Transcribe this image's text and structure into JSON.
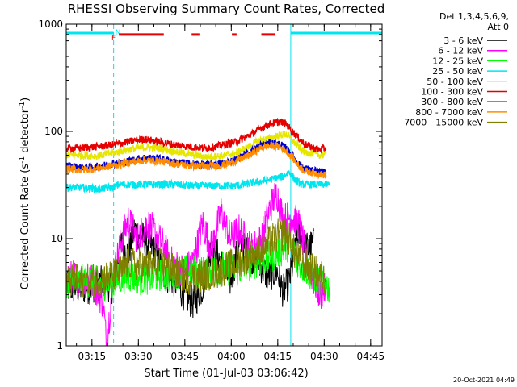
{
  "chart_data": {
    "type": "line",
    "title": "RHESSI Observing Summary Count Rates, Corrected",
    "xlabel": "Start Time (01-Jul-03 03:06:42)",
    "ylabel_prefix": "Corrected Count Rate (s",
    "ylabel_sup1": "-1",
    "ylabel_mid": " detector",
    "ylabel_sup2": "-1",
    "ylabel_suffix": ")",
    "yscale": "log",
    "ylim": [
      1,
      1000
    ],
    "x_unit": "minutes after 03:06:42",
    "xlim": [
      0,
      102
    ],
    "x_ticks": [
      {
        "label": "03:15",
        "x": 8.3
      },
      {
        "label": "03:30",
        "x": 23.3
      },
      {
        "label": "03:45",
        "x": 38.3
      },
      {
        "label": "04:00",
        "x": 53.3
      },
      {
        "label": "04:15",
        "x": 68.3
      },
      {
        "label": "04:30",
        "x": 83.3
      },
      {
        "label": "04:45",
        "x": 98.3
      }
    ],
    "y_ticks": [
      {
        "label": "1",
        "v": 1
      },
      {
        "label": "10",
        "v": 10
      },
      {
        "label": "100",
        "v": 100
      },
      {
        "label": "1000",
        "v": 1000
      }
    ],
    "legend_header": [
      "Det 1,3,4,5,6,9,",
      "Att 0"
    ],
    "legend_position": "top-right outside",
    "night_intervals": [
      [
        0,
        15.3
      ],
      [
        72.5,
        102
      ]
    ],
    "boundary_color": "#00e5ee",
    "saa_marks": [
      {
        "label": "F",
        "x": 15.3
      },
      {
        "label": "N",
        "x": 16.7
      }
    ],
    "flag_segments": [
      [
        17,
        31.5
      ],
      [
        40.5,
        43
      ],
      [
        53.5,
        55
      ],
      [
        63,
        67.5
      ]
    ],
    "flag_level": 800,
    "series": [
      {
        "name": "3 - 6 keV",
        "color": "#000000",
        "x": [
          0,
          8,
          12,
          15,
          16.5,
          18,
          20,
          22,
          25,
          28,
          30,
          32,
          35,
          38,
          41,
          44,
          47,
          50,
          53,
          56,
          59,
          62,
          65,
          68,
          70,
          72,
          75,
          78,
          80
        ],
        "values": [
          3.5,
          3.5,
          4,
          3.5,
          6,
          9,
          7,
          12,
          10,
          8,
          6,
          4.5,
          4,
          3,
          2.5,
          3.5,
          9,
          6,
          4,
          9,
          7,
          6,
          4.5,
          5,
          3.2,
          4,
          11,
          8,
          9
        ]
      },
      {
        "name": "6 - 12 keV",
        "color": "#ff00ff",
        "x": [
          0,
          8,
          12,
          13,
          15,
          17,
          20,
          23,
          26,
          28,
          31,
          34,
          38,
          41,
          44,
          47,
          50,
          53,
          56,
          60,
          63,
          66,
          68,
          70,
          72,
          75,
          78,
          80,
          82,
          84
        ],
        "values": [
          4.5,
          4.2,
          2.5,
          1.0,
          4,
          8,
          15,
          10,
          14,
          12,
          9,
          6,
          5,
          6,
          14,
          8,
          18,
          10,
          12,
          8,
          10,
          20,
          27,
          15,
          16,
          14,
          6,
          4,
          3,
          3.5
        ]
      },
      {
        "name": "12 - 25 keV",
        "color": "#00ff00",
        "x": [
          0,
          8,
          12,
          15,
          20,
          25,
          30,
          35,
          40,
          45,
          50,
          55,
          60,
          65,
          70,
          72,
          75,
          78,
          80,
          82,
          85
        ],
        "values": [
          4,
          4,
          3.8,
          4,
          4.5,
          4.2,
          4.6,
          4.8,
          5,
          4.8,
          5.4,
          5,
          6,
          6.5,
          8,
          9,
          6,
          5,
          4.5,
          4,
          3.5
        ]
      },
      {
        "name": "25 - 50 keV",
        "color": "#00e5ee",
        "x": [
          0,
          5,
          10,
          15,
          17,
          20,
          25,
          30,
          35,
          40,
          45,
          50,
          55,
          60,
          65,
          70,
          72,
          74,
          76,
          78,
          80,
          82,
          85
        ],
        "values": [
          30,
          30,
          29,
          30,
          32,
          32,
          32,
          32,
          32,
          31,
          31,
          31,
          31,
          33,
          35,
          38,
          42,
          35,
          32,
          32,
          32,
          32,
          32
        ]
      },
      {
        "name": "50 - 100 keV",
        "color": "#e6e600",
        "x": [
          0,
          5,
          10,
          15,
          20,
          25,
          30,
          35,
          40,
          45,
          50,
          55,
          60,
          63,
          66,
          69,
          71,
          73,
          75,
          77,
          80,
          82,
          84
        ],
        "values": [
          60,
          60,
          59,
          63,
          68,
          71,
          70,
          65,
          61,
          58,
          59,
          63,
          75,
          84,
          86,
          92,
          95,
          82,
          72,
          64,
          62,
          60,
          61
        ]
      },
      {
        "name": "100 - 300 keV",
        "color": "#e60000",
        "x": [
          0,
          5,
          10,
          15,
          20,
          25,
          30,
          35,
          40,
          45,
          50,
          55,
          60,
          63,
          66,
          69,
          71,
          73,
          75,
          77,
          80,
          82,
          84
        ],
        "values": [
          70,
          70,
          72,
          75,
          80,
          85,
          80,
          75,
          72,
          70,
          74,
          80,
          95,
          108,
          118,
          123,
          118,
          100,
          87,
          76,
          70,
          68,
          70
        ]
      },
      {
        "name": "300 - 800 keV",
        "color": "#0000cd",
        "x": [
          0,
          5,
          10,
          15,
          20,
          25,
          30,
          35,
          40,
          45,
          50,
          55,
          60,
          63,
          66,
          69,
          71,
          73,
          75,
          77,
          80,
          82,
          84
        ],
        "values": [
          48,
          46,
          47,
          50,
          53,
          57,
          56,
          52,
          50,
          49,
          50,
          55,
          66,
          75,
          78,
          76,
          70,
          60,
          50,
          45,
          43,
          42,
          41
        ]
      },
      {
        "name": "800 - 7000 keV",
        "color": "#ff8c00",
        "x": [
          0,
          5,
          10,
          15,
          20,
          25,
          30,
          35,
          40,
          45,
          50,
          55,
          60,
          63,
          66,
          69,
          71,
          73,
          75,
          77,
          80,
          82,
          84
        ],
        "values": [
          45,
          44,
          45,
          48,
          51,
          54,
          53,
          50,
          48,
          47,
          48,
          53,
          62,
          71,
          74,
          72,
          66,
          57,
          48,
          43,
          41,
          40,
          39
        ]
      },
      {
        "name": "7000 - 15000 keV",
        "color": "#808000",
        "x": [
          0,
          5,
          10,
          15,
          18,
          20,
          25,
          30,
          35,
          40,
          45,
          50,
          55,
          60,
          63,
          65,
          68,
          70,
          72,
          74,
          76,
          78,
          80,
          82,
          84
        ],
        "values": [
          4,
          4,
          4.2,
          4.5,
          5,
          6,
          5.5,
          5.8,
          5,
          4.2,
          4.6,
          5,
          6,
          7,
          8,
          9,
          10.5,
          11,
          10,
          7,
          6,
          5.5,
          5,
          4.5,
          4
        ]
      }
    ]
  },
  "footer": {
    "timestamp": "20-Oct-2021 04:49"
  }
}
